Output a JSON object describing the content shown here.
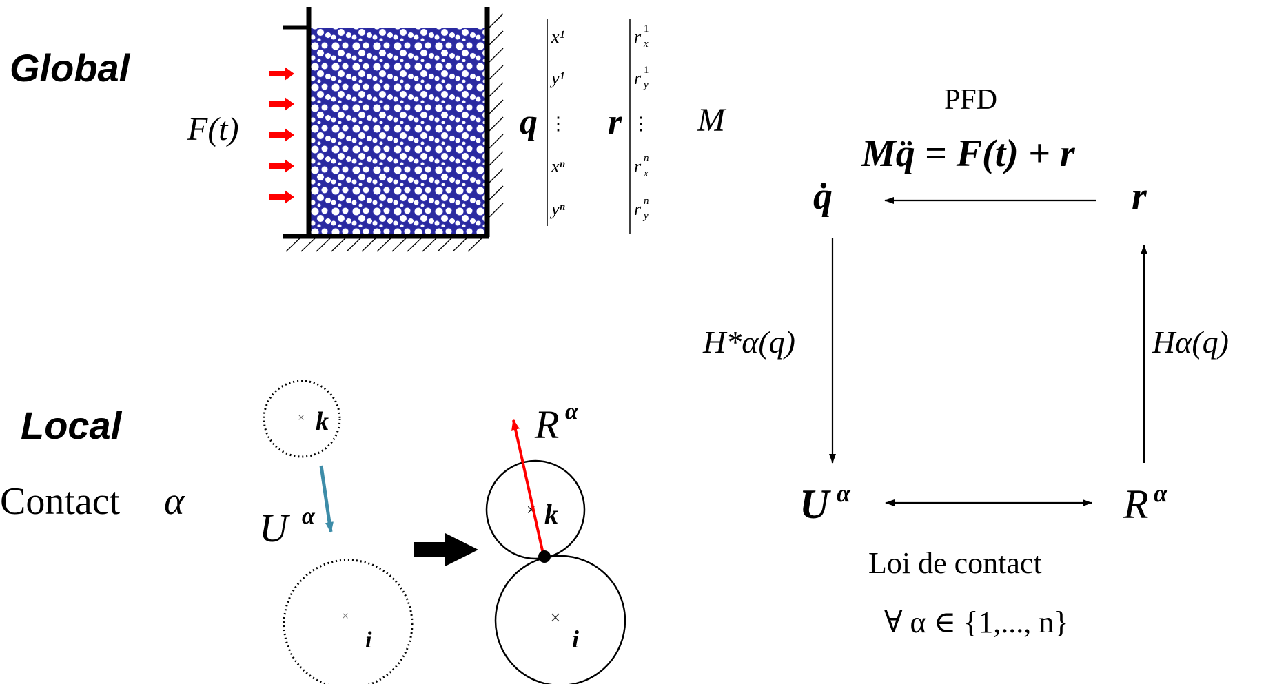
{
  "global": {
    "title": "Global",
    "force_label": "F(t)",
    "q_symbol": "q",
    "q_entries": [
      "x¹",
      "y¹",
      "⋮",
      "xⁿ",
      "yⁿ"
    ],
    "r_symbol": "r",
    "r_entries": [
      "r",
      "r",
      "⋮",
      "r",
      "r"
    ],
    "r_entry_subs": [
      "x",
      "y",
      "",
      "x",
      "y"
    ],
    "r_entry_sups": [
      "1",
      "1",
      "",
      "n",
      "n"
    ],
    "mass_symbol": "M"
  },
  "local": {
    "title": "Local",
    "contact_label": "Contact",
    "alpha": "α",
    "grain_k": "k",
    "grain_i": "i",
    "U_symbol": "U",
    "R_symbol": "R",
    "colors": {
      "displacement_arrow": "#3d8ca8",
      "reaction_arrow": "#ff0000",
      "force_arrows": "#ff0000"
    }
  },
  "cycle": {
    "pfd_label": "PFD",
    "pfd_equation": "Mq̈ = F(t) + r",
    "q_dot": "q̇",
    "r_node": "r",
    "left_map": "H*α(q)",
    "right_map": "Hα(q)",
    "U_node": "U",
    "R_node": "R",
    "alpha": "α",
    "contact_law": "Loi  de contact",
    "quantifier": "∀ α ∈ {1,..., n}"
  }
}
